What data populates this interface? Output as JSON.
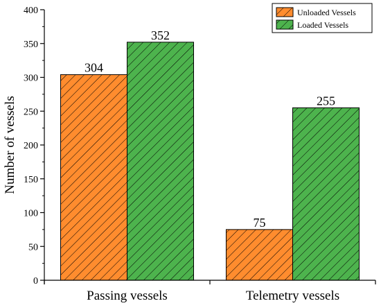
{
  "chart_data": {
    "type": "bar",
    "categories": [
      "Passing vessels",
      "Telemetry vessels"
    ],
    "series": [
      {
        "name": "Unloaded Vessels",
        "values": [
          304,
          75
        ],
        "color": "#ff8c2e"
      },
      {
        "name": "Loaded Vessels",
        "values": [
          352,
          255
        ],
        "color": "#4db34d"
      }
    ],
    "ylabel": "Number of vessels",
    "ylim": [
      0,
      400
    ],
    "yticks": [
      0,
      50,
      100,
      150,
      200,
      250,
      300,
      350,
      400
    ],
    "legend_position": "top-right",
    "hatch": "diagonal",
    "grid": false,
    "data_labels": true
  }
}
